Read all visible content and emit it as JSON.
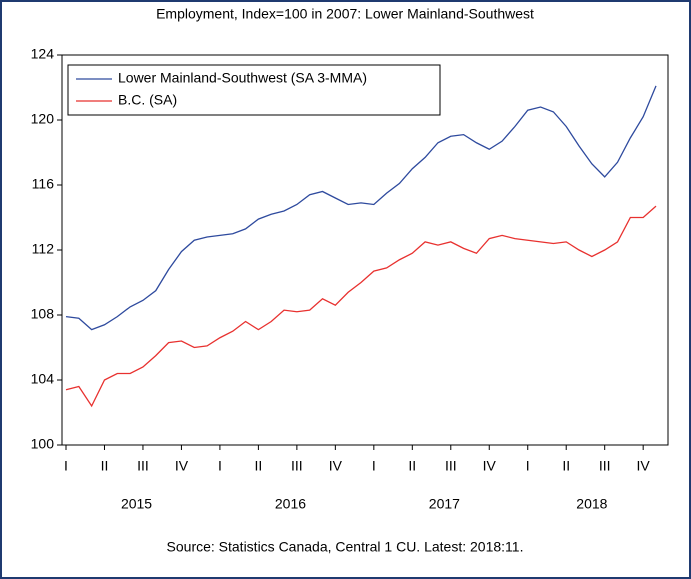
{
  "chart_data": {
    "type": "line",
    "title": "Employment, Index=100 in 2007: Lower Mainland-Southwest",
    "source": "Source: Statistics Canada, Central 1 CU. Latest: 2018:11.",
    "categories": [
      "I",
      null,
      null,
      "II",
      null,
      null,
      "III",
      null,
      null,
      "IV",
      null,
      null,
      "I",
      null,
      null,
      "II",
      null,
      null,
      "III",
      null,
      null,
      "IV",
      null,
      null,
      "I",
      null,
      null,
      "II",
      null,
      null,
      "III",
      null,
      null,
      "IV",
      null,
      null,
      "I",
      null,
      null,
      "II",
      null,
      null,
      "III",
      null,
      null,
      "IV",
      null
    ],
    "years": [
      "2015",
      "2016",
      "2017",
      "2018"
    ],
    "series": [
      {
        "name": "Lower Mainland-Southwest (SA 3-MMA)",
        "color": "#2e4a9e",
        "values": [
          107.9,
          107.8,
          107.1,
          107.4,
          107.9,
          108.5,
          108.9,
          109.5,
          110.8,
          111.9,
          112.6,
          112.8,
          112.9,
          113.0,
          113.3,
          113.9,
          114.2,
          114.4,
          114.8,
          115.4,
          115.6,
          115.2,
          114.8,
          114.9,
          114.8,
          115.5,
          116.1,
          117.0,
          117.7,
          118.6,
          119.0,
          119.1,
          118.6,
          118.2,
          118.7,
          119.6,
          120.6,
          120.8,
          120.5,
          119.6,
          118.4,
          117.3,
          116.5,
          117.4,
          118.9,
          120.2,
          122.1
        ]
      },
      {
        "name": "B.C. (SA)",
        "color": "#e8312f",
        "values": [
          103.4,
          103.6,
          102.4,
          104.0,
          104.4,
          104.4,
          104.8,
          105.5,
          106.3,
          106.4,
          106.0,
          106.1,
          106.6,
          107.0,
          107.6,
          107.1,
          107.6,
          108.3,
          108.2,
          108.3,
          109.0,
          108.6,
          109.4,
          110.0,
          110.7,
          110.9,
          111.4,
          111.8,
          112.5,
          112.3,
          112.5,
          112.1,
          111.8,
          112.7,
          112.9,
          112.7,
          112.6,
          112.5,
          112.4,
          112.5,
          112.0,
          111.6,
          112.0,
          112.5,
          114.0,
          114.0,
          114.7
        ]
      }
    ],
    "ylim": [
      100,
      124
    ],
    "yticks": [
      100,
      104,
      108,
      112,
      116,
      120,
      124
    ],
    "grid": false,
    "legend": "upper left"
  }
}
